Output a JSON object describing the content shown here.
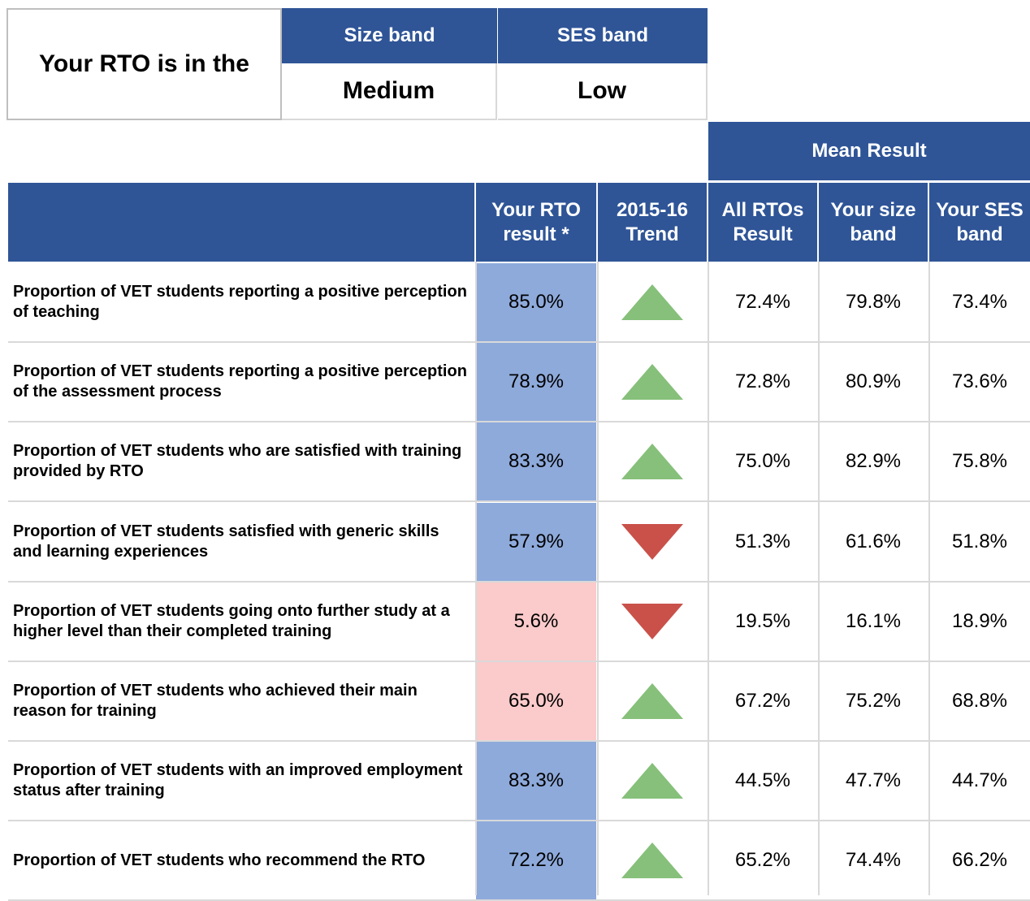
{
  "header": {
    "title": "Your RTO is in the",
    "bands": [
      {
        "label": "Size band",
        "value": "Medium"
      },
      {
        "label": "SES band",
        "value": "Low"
      }
    ]
  },
  "table": {
    "group_header": "Mean Result",
    "columns": [
      "Your RTO result *",
      "2015-16 Trend",
      "All RTOs Result",
      "Your size band",
      "Your SES band"
    ],
    "trend_colors": {
      "up": "#86c07a",
      "down": "#c9514a"
    },
    "rows": [
      {
        "label": "Proportion of VET students reporting a positive perception of teaching",
        "result": "85.0%",
        "result_color": "#8eaadb",
        "trend": "up",
        "all": "72.4%",
        "size": "79.8%",
        "ses": "73.4%"
      },
      {
        "label": "Proportion of VET students reporting a positive perception of the assessment process",
        "result": "78.9%",
        "result_color": "#8eaadb",
        "trend": "up",
        "all": "72.8%",
        "size": "80.9%",
        "ses": "73.6%"
      },
      {
        "label": "Proportion of VET students who are satisfied with training provided by RTO",
        "result": "83.3%",
        "result_color": "#8eaadb",
        "trend": "up",
        "all": "75.0%",
        "size": "82.9%",
        "ses": "75.8%"
      },
      {
        "label": "Proportion of VET students satisfied with generic skills and learning experiences",
        "result": "57.9%",
        "result_color": "#8eaadb",
        "trend": "down",
        "all": "51.3%",
        "size": "61.6%",
        "ses": "51.8%"
      },
      {
        "label": "Proportion of VET students going onto further study at a higher level than their completed training",
        "result": "5.6%",
        "result_color": "#fbcaca",
        "trend": "down",
        "all": "19.5%",
        "size": "16.1%",
        "ses": "18.9%"
      },
      {
        "label": "Proportion of VET students who achieved their main reason for training",
        "result": "65.0%",
        "result_color": "#fbcaca",
        "trend": "up",
        "all": "67.2%",
        "size": "75.2%",
        "ses": "68.8%"
      },
      {
        "label": "Proportion of VET students with an improved employment status after training",
        "result": "83.3%",
        "result_color": "#8eaadb",
        "trend": "up",
        "all": "44.5%",
        "size": "47.7%",
        "ses": "44.7%"
      },
      {
        "label": "Proportion of VET students who recommend the RTO",
        "result": "72.2%",
        "result_color": "#8eaadb",
        "trend": "up",
        "all": "65.2%",
        "size": "74.4%",
        "ses": "66.2%"
      }
    ]
  }
}
